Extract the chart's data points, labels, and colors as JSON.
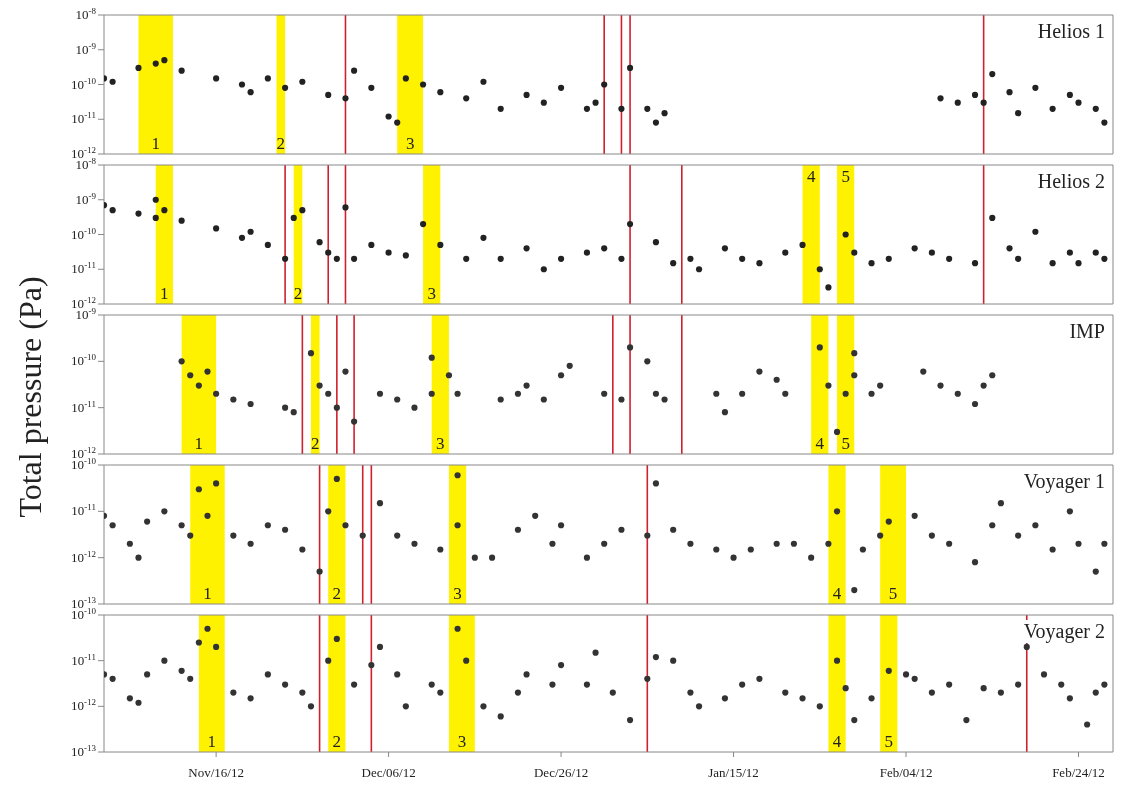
{
  "chart_data": [
    {
      "type": "scatter",
      "title": "Helios 1",
      "ylabel": "Total pressure (Pa)",
      "log": "y",
      "marker": "circle",
      "tick_labels": "y",
      "xlim": [
        "2012-11-03",
        "2013-02-28"
      ],
      "xticks": [
        {
          "value": "2012-11-16",
          "label": null
        },
        {
          "value": "2012-12-06",
          "label": null
        },
        {
          "value": "2012-12-26",
          "label": null
        },
        {
          "value": "2013-01-15",
          "label": null
        },
        {
          "value": "2013-02-04",
          "label": null
        },
        {
          "value": "2013-02-24",
          "label": null
        }
      ],
      "ylim": [
        1e-12,
        1e-08
      ],
      "yticks": [
        {
          "value": 1e-12,
          "label": "10$^{-12}$"
        },
        {
          "value": 1e-11,
          "label": "10$^{-11}$"
        },
        {
          "value": 1e-10,
          "label": "10$^{-10}$"
        },
        {
          "value": 1e-09,
          "label": "10$^{-9}$"
        },
        {
          "value": 1e-08,
          "label": "10$^{-8}$"
        }
      ],
      "series": [
        {
          "color": "#222222",
          "x": [
            "2012-11-03",
            "2012-11-04",
            "2012-11-07",
            "2012-11-09",
            "2012-11-10",
            "2012-11-12",
            "2012-11-16",
            "2012-11-19",
            "2012-11-20",
            "2012-11-22",
            "2012-11-24",
            "2012-11-26",
            "2012-11-29",
            "2012-12-01",
            "2012-12-02",
            "2012-12-04",
            "2012-12-06",
            "2012-12-07",
            "2012-12-08",
            "2012-12-10",
            "2012-12-12",
            "2012-12-15",
            "2012-12-17",
            "2012-12-19",
            "2012-12-22",
            "2012-12-24",
            "2012-12-26",
            "2012-12-29",
            "2012-12-30",
            "2012-12-31",
            "2013-01-02",
            "2013-01-03",
            "2013-01-05",
            "2013-01-06",
            "2013-01-07",
            "2013-02-08",
            "2013-02-10",
            "2013-02-12",
            "2013-02-13",
            "2013-02-14",
            "2013-02-16",
            "2013-02-17",
            "2013-02-19",
            "2013-02-21",
            "2013-02-23",
            "2013-02-24",
            "2013-02-26",
            "2013-02-27"
          ],
          "values": [
            1.5e-10,
            1.2e-10,
            3e-10,
            4e-10,
            5e-10,
            2.5e-10,
            1.5e-10,
            1e-10,
            6e-11,
            1.5e-10,
            8e-11,
            1.2e-10,
            5e-11,
            4e-11,
            2.5e-10,
            8e-11,
            1.2e-11,
            8e-12,
            1.5e-10,
            1e-10,
            6e-11,
            4e-11,
            1.2e-10,
            2e-11,
            5e-11,
            3e-11,
            8e-11,
            2e-11,
            3e-11,
            1e-10,
            2e-11,
            3e-10,
            2e-11,
            8e-12,
            1.5e-11,
            4e-11,
            3e-11,
            5e-11,
            3e-11,
            2e-10,
            6e-11,
            1.5e-11,
            8e-11,
            2e-11,
            5e-11,
            3e-11,
            2e-11,
            8e-12
          ]
        }
      ],
      "bands": [
        {
          "axis": "x",
          "from": "2012-11-07",
          "to": "2012-11-11",
          "label": "1",
          "color": "#fff200"
        },
        {
          "axis": "x",
          "from": "2012-11-23",
          "to": "2012-11-24",
          "label": "2",
          "color": "#fff200"
        },
        {
          "axis": "x",
          "from": "2012-12-07",
          "to": "2012-12-10",
          "label": "3",
          "color": "#fff200"
        }
      ],
      "ref_lines": [
        {
          "axis": "x",
          "value": "2012-12-01",
          "color": "#d0202e"
        },
        {
          "axis": "x",
          "value": "2012-12-31",
          "color": "#d0202e"
        },
        {
          "axis": "x",
          "value": "2013-01-02",
          "color": "#d0202e"
        },
        {
          "axis": "x",
          "value": "2013-01-03",
          "color": "#d0202e"
        },
        {
          "axis": "x",
          "value": "2013-02-13",
          "color": "#d0202e"
        }
      ]
    },
    {
      "type": "scatter",
      "title": "Helios 2",
      "log": "y",
      "marker": "circle",
      "tick_labels": "y",
      "xlim": [
        "2012-11-03",
        "2013-02-28"
      ],
      "xticks": [
        {
          "value": "2012-11-16",
          "label": null
        },
        {
          "value": "2012-12-06",
          "label": null
        },
        {
          "value": "2012-12-26",
          "label": null
        },
        {
          "value": "2013-01-15",
          "label": null
        },
        {
          "value": "2013-02-04",
          "label": null
        },
        {
          "value": "2013-02-24",
          "label": null
        }
      ],
      "ylim": [
        1e-12,
        1e-08
      ],
      "yticks": [
        {
          "value": 1e-12,
          "label": "10$^{-12}$"
        },
        {
          "value": 1e-11,
          "label": "10$^{-11}$"
        },
        {
          "value": 1e-10,
          "label": "10$^{-10}$"
        },
        {
          "value": 1e-09,
          "label": "10$^{-9}$"
        },
        {
          "value": 1e-08,
          "label": "10$^{-8}$"
        }
      ],
      "series": [
        {
          "color": "#222222",
          "x": [
            "2012-11-03",
            "2012-11-04",
            "2012-11-07",
            "2012-11-09",
            "2012-11-09",
            "2012-11-10",
            "2012-11-12",
            "2012-11-16",
            "2012-11-19",
            "2012-11-20",
            "2012-11-22",
            "2012-11-24",
            "2012-11-25",
            "2012-11-26",
            "2012-11-28",
            "2012-11-29",
            "2012-11-30",
            "2012-12-01",
            "2012-12-02",
            "2012-12-04",
            "2012-12-06",
            "2012-12-08",
            "2012-12-10",
            "2012-12-12",
            "2012-12-15",
            "2012-12-17",
            "2012-12-19",
            "2012-12-22",
            "2012-12-24",
            "2012-12-26",
            "2012-12-29",
            "2012-12-31",
            "2013-01-02",
            "2013-01-03",
            "2013-01-06",
            "2013-01-08",
            "2013-01-10",
            "2013-01-11",
            "2013-01-14",
            "2013-01-16",
            "2013-01-18",
            "2013-01-21",
            "2013-01-23",
            "2013-01-25",
            "2013-01-26",
            "2013-01-28",
            "2013-01-29",
            "2013-01-31",
            "2013-02-02",
            "2013-02-05",
            "2013-02-07",
            "2013-02-09",
            "2013-02-12",
            "2013-02-14",
            "2013-02-16",
            "2013-02-17",
            "2013-02-19",
            "2013-02-21",
            "2013-02-23",
            "2013-02-24",
            "2013-02-26",
            "2013-02-27"
          ],
          "values": [
            7e-10,
            5e-10,
            4e-10,
            3e-10,
            1e-09,
            5e-10,
            2.5e-10,
            1.5e-10,
            8e-11,
            1.2e-10,
            5e-11,
            2e-11,
            3e-10,
            5e-10,
            6e-11,
            3e-11,
            2e-11,
            6e-10,
            2e-11,
            5e-11,
            3e-11,
            2.5e-11,
            2e-10,
            5e-11,
            2e-11,
            8e-11,
            2e-11,
            4e-11,
            1e-11,
            2e-11,
            3e-11,
            4e-11,
            2e-11,
            2e-10,
            6e-11,
            1.5e-11,
            2e-11,
            1e-11,
            4e-11,
            2e-11,
            1.5e-11,
            3e-11,
            5e-11,
            1e-11,
            3e-12,
            1e-10,
            3e-11,
            1.5e-11,
            2e-11,
            4e-11,
            3e-11,
            2e-11,
            1.5e-11,
            3e-10,
            4e-11,
            2e-11,
            1.2e-10,
            1.5e-11,
            3e-11,
            1.5e-11,
            3e-11,
            2e-11
          ]
        }
      ],
      "bands": [
        {
          "axis": "x",
          "from": "2012-11-09",
          "to": "2012-11-11",
          "label": "1",
          "color": "#fff200"
        },
        {
          "axis": "x",
          "from": "2012-11-25",
          "to": "2012-11-26",
          "label": "2",
          "color": "#fff200"
        },
        {
          "axis": "x",
          "from": "2012-12-10",
          "to": "2012-12-12",
          "label": "3",
          "color": "#fff200"
        },
        {
          "axis": "x",
          "from": "2013-01-23",
          "to": "2013-01-25",
          "label": "4",
          "color": "#fff200"
        },
        {
          "axis": "x",
          "from": "2013-01-27",
          "to": "2013-01-29",
          "label": "5",
          "color": "#fff200"
        }
      ],
      "ref_lines": [
        {
          "axis": "x",
          "value": "2012-11-24",
          "color": "#d0202e"
        },
        {
          "axis": "x",
          "value": "2012-11-29",
          "color": "#d0202e"
        },
        {
          "axis": "x",
          "value": "2012-12-01",
          "color": "#d0202e"
        },
        {
          "axis": "x",
          "value": "2013-01-03",
          "color": "#d0202e"
        },
        {
          "axis": "x",
          "value": "2013-01-09",
          "color": "#d0202e"
        },
        {
          "axis": "x",
          "value": "2013-02-13",
          "color": "#d0202e"
        }
      ]
    },
    {
      "type": "scatter",
      "title": "IMP",
      "log": "y",
      "marker": "circle",
      "tick_labels": "y",
      "xlim": [
        "2012-11-03",
        "2013-02-28"
      ],
      "xticks": [
        {
          "value": "2012-11-16",
          "label": null
        },
        {
          "value": "2012-12-06",
          "label": null
        },
        {
          "value": "2012-12-26",
          "label": null
        },
        {
          "value": "2013-01-15",
          "label": null
        },
        {
          "value": "2013-02-04",
          "label": null
        },
        {
          "value": "2013-02-24",
          "label": null
        }
      ],
      "ylim": [
        1e-12,
        1e-09
      ],
      "yticks": [
        {
          "value": 1e-12,
          "label": "10$^{-12}$"
        },
        {
          "value": 1e-11,
          "label": "10$^{-11}$"
        },
        {
          "value": 1e-10,
          "label": "10$^{-10}$"
        },
        {
          "value": 1e-09,
          "label": "10$^{-9}$"
        }
      ],
      "series": [
        {
          "color": "#333333",
          "x": [
            "2012-11-12",
            "2012-11-13",
            "2012-11-14",
            "2012-11-15",
            "2012-11-16",
            "2012-11-18",
            "2012-11-20",
            "2012-11-24",
            "2012-11-25",
            "2012-11-27",
            "2012-11-28",
            "2012-11-29",
            "2012-11-30",
            "2012-12-01",
            "2012-12-02",
            "2012-12-05",
            "2012-12-07",
            "2012-12-09",
            "2012-12-11",
            "2012-12-11",
            "2012-12-13",
            "2012-12-14",
            "2012-12-19",
            "2012-12-21",
            "2012-12-22",
            "2012-12-24",
            "2012-12-26",
            "2012-12-27",
            "2012-12-31",
            "2013-01-02",
            "2013-01-03",
            "2013-01-05",
            "2013-01-06",
            "2013-01-07",
            "2013-01-13",
            "2013-01-14",
            "2013-01-16",
            "2013-01-18",
            "2013-01-20",
            "2013-01-21",
            "2013-01-25",
            "2013-01-26",
            "2013-01-27",
            "2013-01-28",
            "2013-01-29",
            "2013-01-29",
            "2013-01-31",
            "2013-02-01",
            "2013-02-06",
            "2013-02-08",
            "2013-02-10",
            "2013-02-12",
            "2013-02-13",
            "2013-02-14"
          ],
          "values": [
            1e-10,
            5e-11,
            3e-11,
            6e-11,
            2e-11,
            1.5e-11,
            1.2e-11,
            1e-11,
            8e-12,
            1.5e-10,
            3e-11,
            2e-11,
            1e-11,
            6e-11,
            5e-12,
            2e-11,
            1.5e-11,
            1e-11,
            2e-11,
            1.2e-10,
            5e-11,
            2e-11,
            1.5e-11,
            2e-11,
            3e-11,
            1.5e-11,
            5e-11,
            8e-11,
            2e-11,
            1.5e-11,
            2e-10,
            1e-10,
            2e-11,
            1.5e-11,
            2e-11,
            8e-12,
            2e-11,
            6e-11,
            4e-11,
            2e-11,
            2e-10,
            3e-11,
            3e-12,
            2e-11,
            1.5e-10,
            5e-11,
            2e-11,
            3e-11,
            6e-11,
            3e-11,
            2e-11,
            1.2e-11,
            3e-11,
            5e-11
          ]
        }
      ],
      "bands": [
        {
          "axis": "x",
          "from": "2012-11-12",
          "to": "2012-11-16",
          "label": "1",
          "color": "#fff200"
        },
        {
          "axis": "x",
          "from": "2012-11-27",
          "to": "2012-11-28",
          "label": "2",
          "color": "#fff200"
        },
        {
          "axis": "x",
          "from": "2012-12-11",
          "to": "2012-12-13",
          "label": "3",
          "color": "#fff200"
        },
        {
          "axis": "x",
          "from": "2013-01-24",
          "to": "2013-01-26",
          "label": "4",
          "color": "#fff200"
        },
        {
          "axis": "x",
          "from": "2013-01-27",
          "to": "2013-01-29",
          "label": "5",
          "color": "#fff200"
        }
      ],
      "ref_lines": [
        {
          "axis": "x",
          "value": "2012-11-26",
          "color": "#d0202e"
        },
        {
          "axis": "x",
          "value": "2012-11-30",
          "color": "#d0202e"
        },
        {
          "axis": "x",
          "value": "2012-12-02",
          "color": "#d0202e"
        },
        {
          "axis": "x",
          "value": "2013-01-01",
          "color": "#d0202e"
        },
        {
          "axis": "x",
          "value": "2013-01-03",
          "color": "#d0202e"
        },
        {
          "axis": "x",
          "value": "2013-01-09",
          "color": "#d0202e"
        }
      ]
    },
    {
      "type": "scatter",
      "title": "Voyager 1",
      "log": "y",
      "marker": "circle",
      "tick_labels": "y",
      "xlim": [
        "2012-11-03",
        "2013-02-28"
      ],
      "xticks": [
        {
          "value": "2012-11-16",
          "label": null
        },
        {
          "value": "2012-12-06",
          "label": null
        },
        {
          "value": "2012-12-26",
          "label": null
        },
        {
          "value": "2013-01-15",
          "label": null
        },
        {
          "value": "2013-02-04",
          "label": null
        },
        {
          "value": "2013-02-24",
          "label": null
        }
      ],
      "ylim": [
        1e-13,
        1e-10
      ],
      "yticks": [
        {
          "value": 1e-13,
          "label": "10$^{-13}$"
        },
        {
          "value": 1e-12,
          "label": "10$^{-12}$"
        },
        {
          "value": 1e-11,
          "label": "10$^{-11}$"
        },
        {
          "value": 1e-10,
          "label": "10$^{-10}$"
        }
      ],
      "series": [
        {
          "color": "#333333",
          "x": [
            "2012-11-03",
            "2012-11-04",
            "2012-11-06",
            "2012-11-07",
            "2012-11-08",
            "2012-11-10",
            "2012-11-12",
            "2012-11-13",
            "2012-11-14",
            "2012-11-15",
            "2012-11-16",
            "2012-11-18",
            "2012-11-20",
            "2012-11-22",
            "2012-11-24",
            "2012-11-26",
            "2012-11-28",
            "2012-11-29",
            "2012-11-30",
            "2012-12-01",
            "2012-12-03",
            "2012-12-05",
            "2012-12-07",
            "2012-12-09",
            "2012-12-12",
            "2012-12-14",
            "2012-12-14",
            "2012-12-16",
            "2012-12-18",
            "2012-12-21",
            "2012-12-23",
            "2012-12-25",
            "2012-12-26",
            "2012-12-29",
            "2012-12-31",
            "2013-01-02",
            "2013-01-05",
            "2013-01-06",
            "2013-01-08",
            "2013-01-10",
            "2013-01-13",
            "2013-01-15",
            "2013-01-17",
            "2013-01-20",
            "2013-01-22",
            "2013-01-24",
            "2013-01-26",
            "2013-01-27",
            "2013-01-29",
            "2013-01-30",
            "2013-02-01",
            "2013-02-02",
            "2013-02-05",
            "2013-02-07",
            "2013-02-09",
            "2013-02-12",
            "2013-02-14",
            "2013-02-15",
            "2013-02-17",
            "2013-02-19",
            "2013-02-21",
            "2013-02-23",
            "2013-02-24",
            "2013-02-26",
            "2013-02-27"
          ],
          "values": [
            8e-12,
            5e-12,
            2e-12,
            1e-12,
            6e-12,
            1e-11,
            5e-12,
            3e-12,
            3e-11,
            8e-12,
            4e-11,
            3e-12,
            2e-12,
            5e-12,
            4e-12,
            1.5e-12,
            5e-13,
            1e-11,
            5e-11,
            5e-12,
            3e-12,
            1.5e-11,
            3e-12,
            2e-12,
            1.5e-12,
            5e-12,
            6e-11,
            1e-12,
            1e-12,
            4e-12,
            8e-12,
            2e-12,
            5e-12,
            1e-12,
            2e-12,
            4e-12,
            3e-12,
            4e-11,
            4e-12,
            2e-12,
            1.5e-12,
            1e-12,
            1.5e-12,
            2e-12,
            2e-12,
            1e-12,
            2e-12,
            1e-11,
            2e-13,
            1.5e-12,
            3e-12,
            6e-12,
            8e-12,
            3e-12,
            2e-12,
            8e-13,
            5e-12,
            1.5e-11,
            3e-12,
            5e-12,
            1.5e-12,
            1e-11,
            2e-12,
            5e-13,
            2e-12
          ]
        }
      ],
      "bands": [
        {
          "axis": "x",
          "from": "2012-11-13",
          "to": "2012-11-17",
          "label": "1",
          "color": "#fff200"
        },
        {
          "axis": "x",
          "from": "2012-11-29",
          "to": "2012-12-01",
          "label": "2",
          "color": "#fff200"
        },
        {
          "axis": "x",
          "from": "2012-12-13",
          "to": "2012-12-15",
          "label": "3",
          "color": "#fff200"
        },
        {
          "axis": "x",
          "from": "2013-01-26",
          "to": "2013-01-28",
          "label": "4",
          "color": "#fff200"
        },
        {
          "axis": "x",
          "from": "2013-02-01",
          "to": "2013-02-04",
          "label": "5",
          "color": "#fff200"
        }
      ],
      "ref_lines": [
        {
          "axis": "x",
          "value": "2012-11-28",
          "color": "#d0202e"
        },
        {
          "axis": "x",
          "value": "2012-12-03",
          "color": "#d0202e"
        },
        {
          "axis": "x",
          "value": "2012-12-04",
          "color": "#d0202e"
        },
        {
          "axis": "x",
          "value": "2013-01-05",
          "color": "#d0202e"
        }
      ]
    },
    {
      "type": "scatter",
      "title": "Voyager 2",
      "log": "y",
      "marker": "circle",
      "xlim": [
        "2012-11-03",
        "2013-02-28"
      ],
      "xticks": [
        {
          "value": "2012-11-16",
          "label": "Nov/16/12"
        },
        {
          "value": "2012-12-06",
          "label": "Dec/06/12"
        },
        {
          "value": "2012-12-26",
          "label": "Dec/26/12"
        },
        {
          "value": "2013-01-15",
          "label": "Jan/15/12"
        },
        {
          "value": "2013-02-04",
          "label": "Feb/04/12"
        },
        {
          "value": "2013-02-24",
          "label": "Feb/24/12"
        }
      ],
      "ylim": [
        1e-13,
        1e-10
      ],
      "yticks": [
        {
          "value": 1e-13,
          "label": "10$^{-13}$"
        },
        {
          "value": 1e-12,
          "label": "10$^{-12}$"
        },
        {
          "value": 1e-11,
          "label": "10$^{-11}$"
        },
        {
          "value": 1e-10,
          "label": "10$^{-10}$"
        }
      ],
      "series": [
        {
          "color": "#333333",
          "x": [
            "2012-11-03",
            "2012-11-04",
            "2012-11-06",
            "2012-11-07",
            "2012-11-08",
            "2012-11-10",
            "2012-11-12",
            "2012-11-13",
            "2012-11-14",
            "2012-11-15",
            "2012-11-16",
            "2012-11-18",
            "2012-11-20",
            "2012-11-22",
            "2012-11-24",
            "2012-11-26",
            "2012-11-27",
            "2012-11-29",
            "2012-11-30",
            "2012-12-02",
            "2012-12-04",
            "2012-12-05",
            "2012-12-07",
            "2012-12-08",
            "2012-12-11",
            "2012-12-12",
            "2012-12-14",
            "2012-12-15",
            "2012-12-17",
            "2012-12-19",
            "2012-12-21",
            "2012-12-22",
            "2012-12-25",
            "2012-12-26",
            "2012-12-29",
            "2012-12-30",
            "2013-01-01",
            "2013-01-03",
            "2013-01-05",
            "2013-01-06",
            "2013-01-08",
            "2013-01-10",
            "2013-01-11",
            "2013-01-14",
            "2013-01-16",
            "2013-01-18",
            "2013-01-21",
            "2013-01-23",
            "2013-01-25",
            "2013-01-27",
            "2013-01-28",
            "2013-01-29",
            "2013-01-31",
            "2013-02-02",
            "2013-02-04",
            "2013-02-05",
            "2013-02-07",
            "2013-02-09",
            "2013-02-11",
            "2013-02-13",
            "2013-02-15",
            "2013-02-17",
            "2013-02-18",
            "2013-02-20",
            "2013-02-22",
            "2013-02-23",
            "2013-02-25",
            "2013-02-26",
            "2013-02-27"
          ],
          "values": [
            5e-12,
            4e-12,
            1.5e-12,
            1.2e-12,
            5e-12,
            1e-11,
            6e-12,
            4e-12,
            2.5e-11,
            5e-11,
            2e-11,
            2e-12,
            1.5e-12,
            5e-12,
            3e-12,
            2e-12,
            1e-12,
            1e-11,
            3e-11,
            3e-12,
            8e-12,
            2e-11,
            5e-12,
            1e-12,
            3e-12,
            2e-12,
            5e-11,
            1e-11,
            1e-12,
            6e-13,
            2e-12,
            5e-12,
            3e-12,
            8e-12,
            3e-12,
            1.5e-11,
            2e-12,
            5e-13,
            4e-12,
            1.2e-11,
            1e-11,
            2e-12,
            1e-12,
            1.5e-12,
            3e-12,
            4e-12,
            2e-12,
            1.5e-12,
            1e-12,
            1e-11,
            2.5e-12,
            5e-13,
            1.5e-12,
            6e-12,
            5e-12,
            4e-12,
            2e-12,
            3e-12,
            5e-13,
            2.5e-12,
            2e-12,
            3e-12,
            2e-11,
            5e-12,
            3e-12,
            1.5e-12,
            4e-13,
            2e-12,
            3e-12
          ]
        }
      ],
      "bands": [
        {
          "axis": "x",
          "from": "2012-11-14",
          "to": "2012-11-17",
          "label": "1",
          "color": "#fff200"
        },
        {
          "axis": "x",
          "from": "2012-11-29",
          "to": "2012-12-01",
          "label": "2",
          "color": "#fff200"
        },
        {
          "axis": "x",
          "from": "2012-12-13",
          "to": "2012-12-16",
          "label": "3",
          "color": "#fff200"
        },
        {
          "axis": "x",
          "from": "2013-01-26",
          "to": "2013-01-28",
          "label": "4",
          "color": "#fff200"
        },
        {
          "axis": "x",
          "from": "2013-02-01",
          "to": "2013-02-03",
          "label": "5",
          "color": "#fff200"
        }
      ],
      "ref_lines": [
        {
          "axis": "x",
          "value": "2012-11-28",
          "color": "#d0202e"
        },
        {
          "axis": "x",
          "value": "2012-12-04",
          "color": "#d0202e"
        },
        {
          "axis": "x",
          "value": "2013-01-05",
          "color": "#d0202e"
        },
        {
          "axis": "x",
          "value": "2013-02-18",
          "color": "#d0202e"
        }
      ]
    }
  ]
}
